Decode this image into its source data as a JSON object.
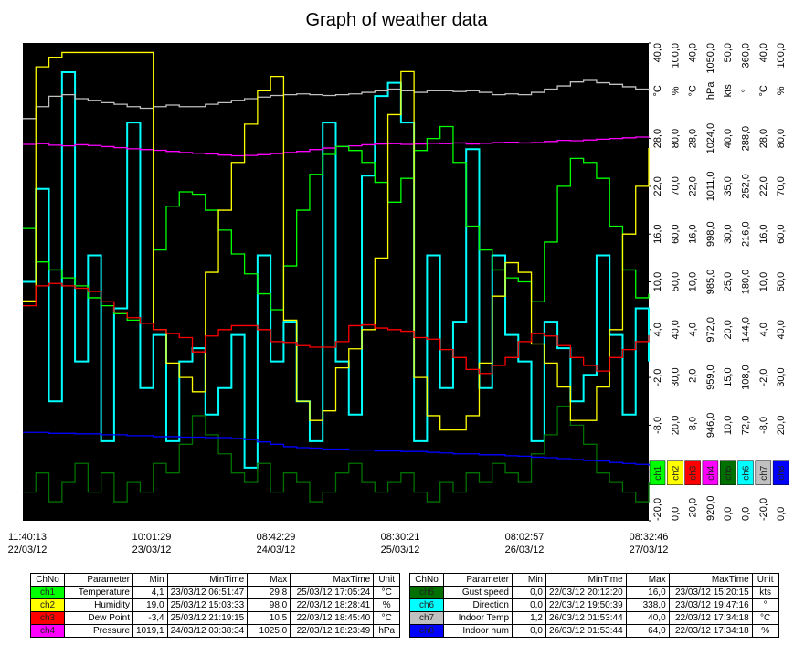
{
  "chart_data": {
    "type": "line",
    "title": "Graph of weather data",
    "x_time_labels": [
      "11:40:13",
      "10:01:29",
      "08:42:29",
      "08:30:21",
      "08:02:57",
      "08:32:46"
    ],
    "x_date_labels": [
      "22/03/12",
      "23/03/12",
      "24/03/12",
      "25/03/12",
      "26/03/12",
      "27/03/12"
    ],
    "series": [
      {
        "name": "ch1",
        "color": "#00ff00",
        "unit": "°C",
        "ylim": [
          -20,
          40
        ],
        "yticks": [
          {
            "value": 40,
            "label": "40,0"
          },
          {
            "value": 28,
            "label": "28,0"
          },
          {
            "value": 22,
            "label": "22,0"
          },
          {
            "value": 16,
            "label": "16,0"
          },
          {
            "value": 10,
            "label": "10,0"
          },
          {
            "value": 4,
            "label": "4,0"
          },
          {
            "value": -2,
            "label": "-2,0"
          },
          {
            "value": -8,
            "label": "-8,0"
          },
          {
            "value": -20,
            "label": "-20,0"
          }
        ],
        "values": [
          16.7,
          12.5,
          11.5,
          10.5,
          9.5,
          8.0,
          7.0,
          6.0,
          5.2,
          4.8,
          14.0,
          19.5,
          21.3,
          21.0,
          19.0,
          16.5,
          13.5,
          11.0,
          8.5,
          6.5,
          12.0,
          19.0,
          23.5,
          26.0,
          27.0,
          26.5,
          25.0,
          22.5,
          20.0,
          23.0,
          26.5,
          28.0,
          29.5,
          25.0,
          17.0,
          14.0,
          11.5,
          10.5,
          10.0,
          7.5,
          15.0,
          22.0,
          25.5,
          25.0,
          23.0,
          17.0,
          11.5,
          8.0,
          8.5
        ]
      },
      {
        "name": "ch2",
        "color": "#ffff00",
        "unit": "%",
        "ylim": [
          0,
          100
        ],
        "yticks": [
          {
            "value": 100,
            "label": "100,0"
          },
          {
            "value": 80,
            "label": "80,0"
          },
          {
            "value": 70,
            "label": "70,0"
          },
          {
            "value": 60,
            "label": "60,0"
          },
          {
            "value": 50,
            "label": "50,0"
          },
          {
            "value": 40,
            "label": "40,0"
          },
          {
            "value": 30,
            "label": "30,0"
          },
          {
            "value": 20,
            "label": "20,0"
          },
          {
            "value": 0,
            "label": "0,0"
          }
        ],
        "values": [
          46,
          95,
          97,
          98,
          98,
          98,
          98,
          98,
          98,
          98,
          40,
          33,
          30,
          27,
          52,
          65,
          75,
          83,
          90,
          93,
          42,
          25,
          21,
          23,
          32,
          36,
          40,
          55,
          85,
          94,
          30,
          22,
          19,
          19,
          22,
          33,
          47,
          54,
          52,
          37,
          33,
          28,
          21,
          21,
          28,
          40,
          60,
          70,
          78
        ]
      },
      {
        "name": "ch3",
        "color": "#ff0000",
        "unit": "°C",
        "ylim": [
          -20,
          40
        ],
        "yticks": [
          {
            "value": 40,
            "label": "40,0"
          },
          {
            "value": 28,
            "label": "28,0"
          },
          {
            "value": 22,
            "label": "22,0"
          },
          {
            "value": 16,
            "label": "16,0"
          },
          {
            "value": 10,
            "label": "10,0"
          },
          {
            "value": 4,
            "label": "4,0"
          },
          {
            "value": -2,
            "label": "-2,0"
          },
          {
            "value": -8,
            "label": "-8,0"
          },
          {
            "value": -20,
            "label": "-20,0"
          }
        ],
        "values": [
          7.0,
          9.5,
          9.8,
          9.5,
          9.2,
          8.8,
          7.5,
          6.2,
          5.5,
          4.8,
          4.0,
          3.5,
          3.0,
          1.2,
          3.2,
          4.0,
          4.5,
          4.5,
          4.0,
          2.5,
          2.4,
          2.0,
          1.8,
          1.8,
          2.5,
          4.5,
          4.6,
          4.2,
          4.0,
          3.8,
          3.0,
          2.8,
          1.5,
          0.5,
          -1.0,
          -1.5,
          -0.5,
          0.5,
          2.5,
          3.5,
          3.2,
          2.0,
          0.5,
          -0.5,
          -1.2,
          0.5,
          1.5,
          2.5,
          3.3
        ]
      },
      {
        "name": "ch4",
        "color": "#ff00ff",
        "unit": "hPa",
        "ylim": [
          920,
          1050
        ],
        "yticks": [
          {
            "value": 1050,
            "label": "1050,0"
          },
          {
            "value": 1024,
            "label": "1024,0"
          },
          {
            "value": 1011,
            "label": "1011,0"
          },
          {
            "value": 998,
            "label": "998,0"
          },
          {
            "value": 985,
            "label": "985,0"
          },
          {
            "value": 972,
            "label": "972,0"
          },
          {
            "value": 959,
            "label": "959,0"
          },
          {
            "value": 946,
            "label": "946,0"
          },
          {
            "value": 920,
            "label": "920,0"
          }
        ],
        "values": [
          1022.4,
          1022.6,
          1022.2,
          1022.0,
          1022.3,
          1022.1,
          1021.8,
          1021.5,
          1021.2,
          1021.0,
          1020.8,
          1020.5,
          1020.2,
          1020.0,
          1019.8,
          1019.5,
          1019.3,
          1019.4,
          1019.6,
          1019.9,
          1020.2,
          1020.5,
          1021.0,
          1021.4,
          1021.8,
          1022.0,
          1022.3,
          1022.5,
          1022.6,
          1022.4,
          1022.5,
          1022.7,
          1022.6,
          1022.8,
          1022.5,
          1022.7,
          1022.9,
          1023.0,
          1022.8,
          1022.9,
          1023.2,
          1023.5,
          1023.4,
          1023.6,
          1023.8,
          1024.0,
          1024.2,
          1024.4,
          1024.5
        ]
      },
      {
        "name": "ch5",
        "color": "#007000",
        "unit": "kts",
        "ylim": [
          0,
          50
        ],
        "yticks": [
          {
            "value": 50,
            "label": "50,0"
          },
          {
            "value": 40,
            "label": "40,0"
          },
          {
            "value": 35,
            "label": "35,0"
          },
          {
            "value": 30,
            "label": "30,0"
          },
          {
            "value": 25,
            "label": "25,0"
          },
          {
            "value": 20,
            "label": "20,0"
          },
          {
            "value": 15,
            "label": "15,0"
          },
          {
            "value": 10,
            "label": "10,0"
          },
          {
            "value": 0,
            "label": "0,0"
          }
        ],
        "values": [
          3,
          5,
          2,
          4,
          6,
          3,
          5,
          2,
          4,
          3,
          6,
          5,
          8,
          11,
          9,
          7,
          5,
          4,
          6,
          3,
          5,
          4,
          2,
          3,
          5,
          6,
          4,
          3,
          4,
          5,
          3,
          2,
          4,
          3,
          5,
          4,
          6,
          5,
          4,
          7,
          9,
          12,
          10,
          8,
          5,
          4,
          3,
          2,
          4
        ]
      },
      {
        "name": "ch6",
        "color": "#00ffff",
        "unit": "°",
        "ylim": [
          0,
          360
        ],
        "yticks": [
          {
            "value": 360,
            "label": "360,0"
          },
          {
            "value": 288,
            "label": "288,0"
          },
          {
            "value": 252,
            "label": "252,0"
          },
          {
            "value": 216,
            "label": "216,0"
          },
          {
            "value": 180,
            "label": "180,0"
          },
          {
            "value": 144,
            "label": "144,0"
          },
          {
            "value": 108,
            "label": "108,0"
          },
          {
            "value": 72,
            "label": "72,0"
          },
          {
            "value": 0,
            "label": "0,0"
          }
        ],
        "values": [
          180,
          250,
          90,
          338,
          120,
          200,
          60,
          160,
          300,
          100,
          140,
          60,
          120,
          130,
          80,
          100,
          140,
          40,
          200,
          120,
          150,
          90,
          60,
          300,
          120,
          80,
          260,
          320,
          330,
          300,
          60,
          200,
          100,
          150,
          280,
          100,
          200,
          140,
          120,
          60,
          150,
          130,
          90,
          110,
          200,
          140,
          80,
          160,
          120
        ]
      },
      {
        "name": "ch7",
        "color": "#c0c0c0",
        "unit": "°C",
        "ylim": [
          -20,
          40
        ],
        "yticks": [
          {
            "value": 40,
            "label": "40,0"
          },
          {
            "value": 28,
            "label": "28,0"
          },
          {
            "value": 22,
            "label": "22,0"
          },
          {
            "value": 16,
            "label": "16,0"
          },
          {
            "value": 10,
            "label": "10,0"
          },
          {
            "value": 4,
            "label": "4,0"
          },
          {
            "value": -2,
            "label": "-2,0"
          },
          {
            "value": -8,
            "label": "-8,0"
          },
          {
            "value": -20,
            "label": "-20,0"
          }
        ],
        "values": [
          30.5,
          32.0,
          33.3,
          33.5,
          33.0,
          32.8,
          32.5,
          32.3,
          32.0,
          31.8,
          32.0,
          32.2,
          32.0,
          32.0,
          32.3,
          32.5,
          32.8,
          33.0,
          33.2,
          33.4,
          33.5,
          33.6,
          33.5,
          33.4,
          33.5,
          33.6,
          33.8,
          34.0,
          34.2,
          34.0,
          33.8,
          34.0,
          34.0,
          33.9,
          34.0,
          33.8,
          33.5,
          33.6,
          33.5,
          33.8,
          34.2,
          34.6,
          35.1,
          35.3,
          35.0,
          34.8,
          34.5,
          34.2,
          34.0
        ]
      },
      {
        "name": "ch8",
        "color": "#0000ff",
        "unit": "%",
        "ylim": [
          0,
          100
        ],
        "yticks": [
          {
            "value": 100,
            "label": "100,0"
          },
          {
            "value": 80,
            "label": "80,0"
          },
          {
            "value": 70,
            "label": "70,0"
          },
          {
            "value": 60,
            "label": "60,0"
          },
          {
            "value": 50,
            "label": "50,0"
          },
          {
            "value": 40,
            "label": "40,0"
          },
          {
            "value": 30,
            "label": "30,0"
          },
          {
            "value": 20,
            "label": "20,0"
          },
          {
            "value": 0,
            "label": "0,0"
          }
        ],
        "values": [
          18.5,
          18.5,
          18.3,
          18.3,
          18.2,
          18.2,
          18.0,
          18.0,
          17.8,
          17.8,
          17.6,
          17.6,
          17.5,
          17.5,
          17.4,
          17.4,
          17.2,
          17.0,
          16.5,
          16.0,
          15.5,
          15.3,
          15.2,
          15.0,
          15.0,
          14.8,
          14.8,
          14.6,
          14.6,
          14.5,
          14.5,
          14.3,
          14.2,
          14.0,
          14.0,
          13.8,
          13.8,
          13.6,
          13.5,
          13.3,
          13.2,
          13.0,
          12.8,
          12.6,
          12.5,
          12.2,
          12.0,
          11.8,
          11.5
        ]
      }
    ]
  },
  "tables": [
    {
      "columns": [
        "ChNo",
        "Parameter",
        "Min",
        "MinTime",
        "Max",
        "MaxTime",
        "Unit"
      ],
      "rows": [
        [
          "ch1",
          "Temperature",
          "4,1",
          "23/03/12 06:51:47",
          "29,8",
          "25/03/12 17:05:24",
          "°C"
        ],
        [
          "ch2",
          "Humidity",
          "19,0",
          "25/03/12 15:03:33",
          "98,0",
          "22/03/12 18:28:41",
          "%"
        ],
        [
          "ch3",
          "Dew Point",
          "-3,4",
          "25/03/12 21:19:15",
          "10,5",
          "22/03/12 18:45:40",
          "°C"
        ],
        [
          "ch4",
          "Pressure",
          "1019,1",
          "24/03/12 03:38:34",
          "1025,0",
          "22/03/12 18:23:49",
          "hPa"
        ]
      ]
    },
    {
      "columns": [
        "ChNo",
        "Parameter",
        "Min",
        "MinTime",
        "Max",
        "MaxTime",
        "Unit"
      ],
      "rows": [
        [
          "ch5",
          "Gust speed",
          "0,0",
          "22/03/12 20:12:20",
          "16,0",
          "23/03/12 15:20:15",
          "kts"
        ],
        [
          "ch6",
          "Direction",
          "0,0",
          "22/03/12 19:50:39",
          "338,0",
          "23/03/12 19:47:16",
          "°"
        ],
        [
          "ch7",
          "Indoor Temp",
          "1,2",
          "26/03/12 01:53:44",
          "40,0",
          "22/03/12 17:34:18",
          "°C"
        ],
        [
          "ch8",
          "Indoor hum",
          "0,0",
          "26/03/12 01:53:44",
          "64,0",
          "22/03/12 17:34:18",
          "%"
        ]
      ]
    }
  ]
}
